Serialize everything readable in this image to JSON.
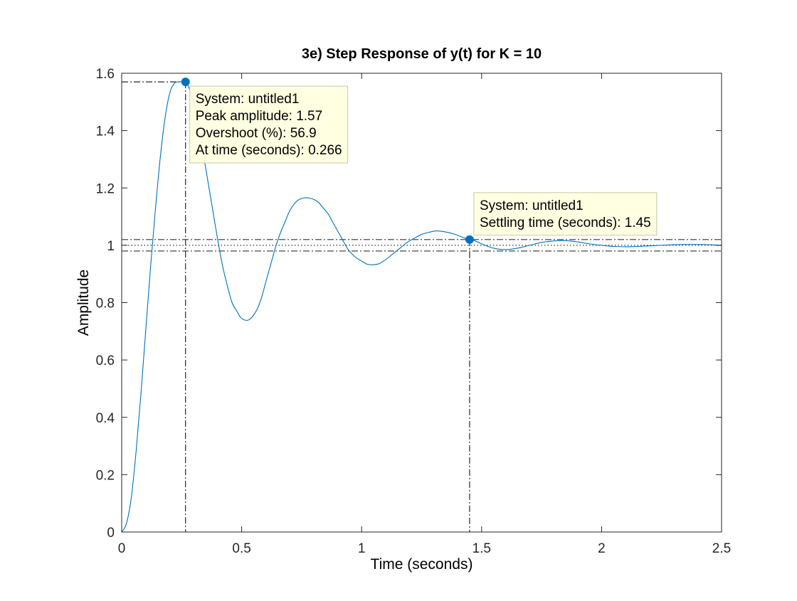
{
  "chart_data": {
    "type": "line",
    "title": "3e) Step Response of y(t) for K = 10",
    "xlabel": "Time (seconds)",
    "ylabel": "Amplitude",
    "xlim": [
      0,
      2.5
    ],
    "ylim": [
      0,
      1.6
    ],
    "xticks": [
      0,
      0.5,
      1,
      1.5,
      2,
      2.5
    ],
    "xtick_labels": [
      "0",
      "0.5",
      "1",
      "1.5",
      "2",
      "2.5"
    ],
    "yticks": [
      0,
      0.2,
      0.4,
      0.6,
      0.8,
      1,
      1.2,
      1.4,
      1.6
    ],
    "ytick_labels": [
      "0",
      "0.2",
      "0.4",
      "0.6",
      "0.8",
      "1",
      "1.2",
      "1.4",
      "1.6"
    ],
    "grid": false,
    "series": [
      {
        "color": "#0072BD",
        "x": [
          0,
          0.02,
          0.04,
          0.06,
          0.08,
          0.1,
          0.12,
          0.14,
          0.16,
          0.18,
          0.2,
          0.22,
          0.24,
          0.266,
          0.28,
          0.3,
          0.32,
          0.34,
          0.36,
          0.38,
          0.4,
          0.42,
          0.44,
          0.46,
          0.48,
          0.5,
          0.53,
          0.56,
          0.58,
          0.6,
          0.62,
          0.64,
          0.66,
          0.68,
          0.7,
          0.72,
          0.74,
          0.76,
          0.78,
          0.8,
          0.82,
          0.84,
          0.86,
          0.88,
          0.9,
          0.92,
          0.94,
          0.96,
          0.98,
          1.0,
          1.02,
          1.04,
          1.07,
          1.1,
          1.13,
          1.16,
          1.19,
          1.22,
          1.25,
          1.28,
          1.31,
          1.34,
          1.37,
          1.4,
          1.43,
          1.46,
          1.5,
          1.55,
          1.6,
          1.65,
          1.7,
          1.75,
          1.8,
          1.85,
          1.9,
          1.95,
          2.0,
          2.05,
          2.1,
          2.15,
          2.2,
          2.25,
          2.3,
          2.35,
          2.4,
          2.45,
          2.5
        ],
        "y": [
          0,
          0.03,
          0.12,
          0.28,
          0.48,
          0.7,
          0.92,
          1.12,
          1.3,
          1.44,
          1.53,
          1.565,
          1.57,
          1.57,
          1.55,
          1.5,
          1.42,
          1.32,
          1.22,
          1.12,
          1.02,
          0.93,
          0.86,
          0.8,
          0.77,
          0.745,
          0.74,
          0.77,
          0.81,
          0.87,
          0.93,
          0.99,
          1.04,
          1.08,
          1.12,
          1.145,
          1.16,
          1.165,
          1.165,
          1.16,
          1.15,
          1.13,
          1.11,
          1.08,
          1.05,
          1.02,
          0.99,
          0.97,
          0.955,
          0.945,
          0.935,
          0.932,
          0.935,
          0.95,
          0.97,
          0.99,
          1.01,
          1.025,
          1.038,
          1.045,
          1.05,
          1.048,
          1.043,
          1.035,
          1.025,
          1.02,
          1.005,
          0.99,
          0.985,
          0.99,
          1.0,
          1.01,
          1.015,
          1.016,
          1.012,
          1.005,
          1.0,
          0.996,
          0.995,
          0.996,
          0.998,
          1.0,
          1.002,
          1.003,
          1.003,
          1.002,
          1.0
        ]
      }
    ],
    "reference_lines": {
      "steady_state": 1.0,
      "settling_band": [
        0.98,
        1.02
      ]
    },
    "datatips": [
      {
        "x": 0.266,
        "y": 1.57,
        "color": "#0072BD",
        "lines": [
          "System: untitled1",
          "Peak amplitude: 1.57",
          "Overshoot (%): 56.9",
          "At time (seconds): 0.266"
        ]
      },
      {
        "x": 1.45,
        "y": 1.02,
        "color": "#0072BD",
        "lines": [
          "System: untitled1",
          "Settling time (seconds): 1.45"
        ]
      }
    ]
  }
}
